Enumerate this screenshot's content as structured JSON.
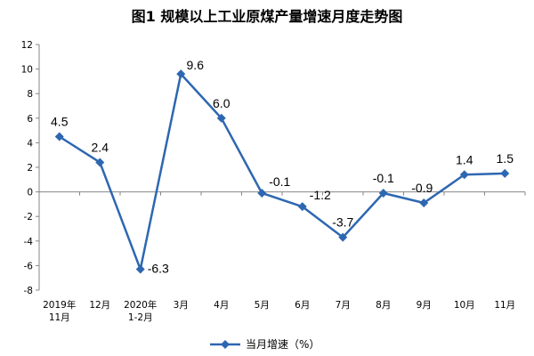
{
  "chart_data": {
    "type": "line",
    "title": "图1  规模以上工业原煤产量增速月度走势图",
    "categories": [
      [
        "2019年",
        "11月"
      ],
      [
        "12月"
      ],
      [
        "2020年",
        "1-2月"
      ],
      [
        "3月"
      ],
      [
        "4月"
      ],
      [
        "5月"
      ],
      [
        "6月"
      ],
      [
        "7月"
      ],
      [
        "8月"
      ],
      [
        "9月"
      ],
      [
        "10月"
      ],
      [
        "11月"
      ]
    ],
    "series": [
      {
        "name": "当月增速（%）",
        "values": [
          4.5,
          2.4,
          -6.3,
          9.6,
          6.0,
          -0.1,
          -1.2,
          -3.7,
          -0.1,
          -0.9,
          1.4,
          1.5
        ],
        "labels": [
          "4.5",
          "2.4",
          "-6.3",
          "9.6",
          "6.0",
          "-0.1",
          "-1.2",
          "-3.7",
          "-0.1",
          "-0.9",
          "1.4",
          "1.5"
        ],
        "color": "#2e67b1"
      }
    ],
    "ylim": [
      -8,
      12
    ],
    "yticks": [
      -8,
      -6,
      -4,
      -2,
      0,
      2,
      4,
      6,
      8,
      10,
      12
    ],
    "xlabel": "",
    "ylabel": "",
    "grid": false,
    "legend": "bottom-center"
  }
}
